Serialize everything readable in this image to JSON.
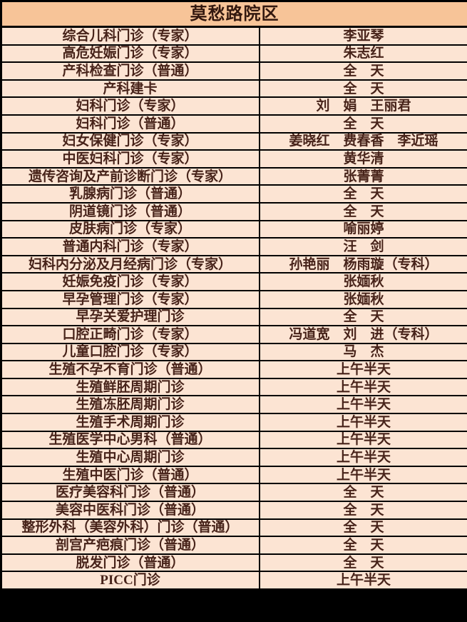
{
  "header": {
    "title": "莫愁路院区"
  },
  "table": {
    "rows": [
      {
        "clinic": "综合儿科门诊（专家）",
        "schedule": "李亚琴"
      },
      {
        "clinic": "高危妊娠门诊（专家）",
        "schedule": "朱志红"
      },
      {
        "clinic": "产科检查门诊（普通）",
        "schedule": "全　天"
      },
      {
        "clinic": "产科建卡",
        "schedule": "全　天"
      },
      {
        "clinic": "妇科门诊（专家）",
        "schedule": "刘　娟　王丽君"
      },
      {
        "clinic": "妇科门诊（普通）",
        "schedule": "全　天"
      },
      {
        "clinic": "妇女保健门诊（专家）",
        "schedule": "姜晓红　费春香　李近瑶"
      },
      {
        "clinic": "中医妇科门诊（专家）",
        "schedule": "黄华清"
      },
      {
        "clinic": "遗传咨询及产前诊断门诊（专家）",
        "schedule": "张菁菁"
      },
      {
        "clinic": "乳腺病门诊（普通）",
        "schedule": "全　天"
      },
      {
        "clinic": "阴道镜门诊（普通）",
        "schedule": "全　天"
      },
      {
        "clinic": "皮肤病门诊（专家）",
        "schedule": "喻丽婷"
      },
      {
        "clinic": "普通内科门诊（专家）",
        "schedule": "汪　剑"
      },
      {
        "clinic": "妇科内分泌及月经病门诊（专家）",
        "schedule": "孙艳丽　杨雨璇（专科）"
      },
      {
        "clinic": "妊娠免疫门诊（专家）",
        "schedule": "张媔秋"
      },
      {
        "clinic": "早孕管理门诊（专家）",
        "schedule": "张媔秋"
      },
      {
        "clinic": "早孕关爱护理门诊",
        "schedule": "全　天"
      },
      {
        "clinic": "口腔正畸门诊（专家）",
        "schedule": "冯道宽　刘　进（专科）"
      },
      {
        "clinic": "儿童口腔门诊（专家）",
        "schedule": "马　杰"
      },
      {
        "clinic": "生殖不孕不育门诊（普通）",
        "schedule": "上午半天"
      },
      {
        "clinic": "生殖鲜胚周期门诊",
        "schedule": "上午半天"
      },
      {
        "clinic": "生殖冻胚周期门诊",
        "schedule": "上午半天"
      },
      {
        "clinic": "生殖手术周期门诊",
        "schedule": "上午半天"
      },
      {
        "clinic": "生殖医学中心男科（普通）",
        "schedule": "上午半天"
      },
      {
        "clinic": "生殖中心周期门诊",
        "schedule": "上午半天"
      },
      {
        "clinic": "生殖中医门诊（普通）",
        "schedule": "上午半天"
      },
      {
        "clinic": "医疗美容科门诊（普通）",
        "schedule": "全　天"
      },
      {
        "clinic": "美容中医科门诊（普通）",
        "schedule": "全　天"
      },
      {
        "clinic": "整形外科（美容外科）门诊（普通）",
        "schedule": "全　天"
      },
      {
        "clinic": "剖宫产疤痕门诊（普通）",
        "schedule": "全　天"
      },
      {
        "clinic": "脱发门诊（普通）",
        "schedule": "全　天"
      },
      {
        "clinic": "PICC门诊",
        "schedule": "上午半天"
      }
    ]
  },
  "colors": {
    "header_bg": "#f7c498",
    "row_bg": "#fce4d3",
    "border": "#000000",
    "text": "#47231a"
  }
}
